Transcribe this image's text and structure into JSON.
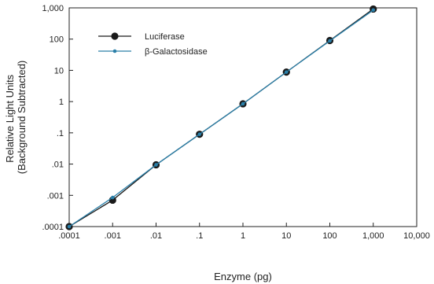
{
  "chart_data": {
    "type": "line",
    "x_scale": "log",
    "y_scale": "log",
    "xlabel": "Enzyme (pg)",
    "ylabel_lines": [
      "Relative Light Units",
      "(Background Subtracted)"
    ],
    "xlim": [
      0.0001,
      10000
    ],
    "ylim": [
      0.0001,
      1000
    ],
    "x_ticks": [
      0.0001,
      0.001,
      0.01,
      0.1,
      1,
      10,
      100,
      1000,
      10000
    ],
    "x_tick_labels": [
      ".0001",
      ".001",
      ".01",
      ".1",
      "1",
      "10",
      "100",
      "1,000",
      "10,000"
    ],
    "y_ticks": [
      0.0001,
      0.001,
      0.01,
      0.1,
      1,
      10,
      100,
      1000
    ],
    "y_tick_labels": [
      ".0001",
      ".001",
      ".01",
      ".1",
      "1",
      "10",
      "100",
      "1,000"
    ],
    "grid": false,
    "legend_position": "top-left",
    "series": [
      {
        "name": "Luciferase",
        "color": "#1a1a1a",
        "marker": "large-circle",
        "x": [
          0.0001,
          0.001,
          0.01,
          0.1,
          1,
          10,
          100,
          1000
        ],
        "y": [
          0.0001,
          0.0007,
          0.0095,
          0.09,
          0.85,
          8.8,
          90,
          920
        ]
      },
      {
        "name": "β-Galactosidase",
        "color": "#2a7fa8",
        "marker": "small-circle",
        "x": [
          0.0001,
          0.001,
          0.01,
          0.1,
          1,
          10,
          100,
          1000
        ],
        "y": [
          0.0001,
          0.00085,
          0.0095,
          0.09,
          0.85,
          8.8,
          88,
          850
        ]
      }
    ]
  }
}
